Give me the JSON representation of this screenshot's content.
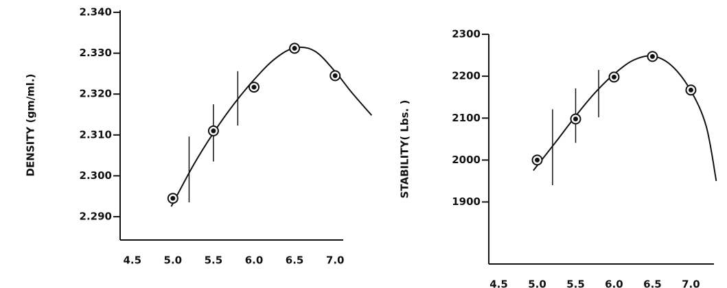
{
  "chart_data": [
    {
      "type": "scatter",
      "y_label": "DENSITY (gm/ml.)",
      "x": [
        5.0,
        5.5,
        6.0,
        6.5,
        7.0
      ],
      "values": [
        2.2945,
        2.311,
        2.3217,
        2.3312,
        2.3245
      ],
      "curve_x": [
        4.98,
        5.25,
        5.5,
        5.75,
        6.0,
        6.25,
        6.5,
        6.75,
        7.0,
        7.2,
        7.45
      ],
      "curve_y": [
        2.2925,
        2.3025,
        2.3105,
        2.3175,
        2.3235,
        2.3285,
        2.3313,
        2.3305,
        2.3255,
        2.3205,
        2.3148
      ],
      "range_x": [
        5.2,
        5.5,
        5.8
      ],
      "range_low": [
        2.2935,
        2.3035,
        2.3123
      ],
      "range_high": [
        2.3096,
        2.3175,
        2.3256
      ],
      "color": "#111111",
      "xlim": [
        4.35,
        7.1
      ],
      "ylim": [
        2.2843,
        2.3405
      ],
      "xticks": [
        4.5,
        {
          "value": 5.0,
          "label": "5.0"
        },
        5.5,
        {
          "value": 6.0,
          "label": "6.0"
        },
        6.5,
        {
          "value": 7.0,
          "label": "7.0"
        }
      ],
      "yticks": [
        {
          "value": 2.29,
          "label": "2.290"
        },
        {
          "value": 2.3,
          "label": "2.300"
        },
        {
          "value": 2.31,
          "label": "2.310"
        },
        {
          "value": 2.32,
          "label": "2.320"
        },
        {
          "value": 2.33,
          "label": "2.330"
        },
        {
          "value": 2.34,
          "label": "2.340"
        }
      ]
    },
    {
      "type": "scatter",
      "y_label": "STABILITY( Lbs. )",
      "x": [
        5.0,
        5.5,
        6.0,
        6.5,
        7.0
      ],
      "values": [
        2000,
        2098,
        2198,
        2247,
        2167
      ],
      "curve_x": [
        4.95,
        5.25,
        5.5,
        5.75,
        6.0,
        6.25,
        6.5,
        6.75,
        7.0,
        7.2,
        7.33
      ],
      "curve_y": [
        1975,
        2045,
        2105,
        2160,
        2205,
        2238,
        2248,
        2225,
        2165,
        2080,
        1950
      ],
      "range_x": [
        5.2,
        5.5,
        5.8
      ],
      "range_low": [
        1940,
        2041,
        2102
      ],
      "range_high": [
        2121,
        2171,
        2215
      ],
      "color": "#111111",
      "xlim": [
        4.37,
        7.3
      ],
      "ylim": [
        1752,
        2300
      ],
      "xticks": [
        4.5,
        {
          "value": 5.0,
          "label": "5.0"
        },
        5.5,
        {
          "value": 6.0,
          "label": "6.0"
        },
        6.5,
        {
          "value": 7.0,
          "label": "7.0"
        }
      ],
      "yticks": [
        1900,
        2000,
        2100,
        2200,
        2300
      ]
    }
  ]
}
